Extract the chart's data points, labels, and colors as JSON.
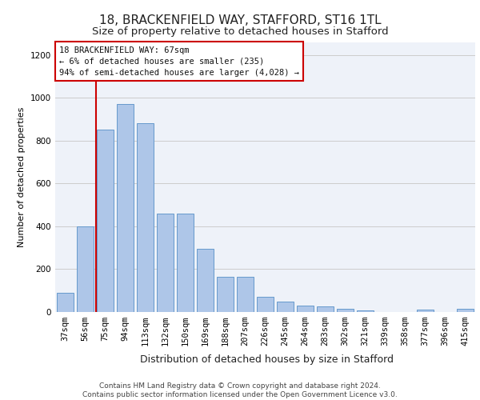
{
  "title1": "18, BRACKENFIELD WAY, STAFFORD, ST16 1TL",
  "title2": "Size of property relative to detached houses in Stafford",
  "xlabel": "Distribution of detached houses by size in Stafford",
  "ylabel": "Number of detached properties",
  "categories": [
    "37sqm",
    "56sqm",
    "75sqm",
    "94sqm",
    "113sqm",
    "132sqm",
    "150sqm",
    "169sqm",
    "188sqm",
    "207sqm",
    "226sqm",
    "245sqm",
    "264sqm",
    "283sqm",
    "302sqm",
    "321sqm",
    "339sqm",
    "358sqm",
    "377sqm",
    "396sqm",
    "415sqm"
  ],
  "values": [
    90,
    400,
    850,
    970,
    880,
    460,
    460,
    295,
    165,
    165,
    70,
    50,
    30,
    25,
    15,
    8,
    0,
    0,
    10,
    0,
    15
  ],
  "bar_color": "#aec6e8",
  "bar_edge_color": "#6699cc",
  "vline_color": "#cc0000",
  "annotation_text": "18 BRACKENFIELD WAY: 67sqm\n← 6% of detached houses are smaller (235)\n94% of semi-detached houses are larger (4,028) →",
  "annotation_box_color": "#ffffff",
  "annotation_box_edge": "#cc0000",
  "ylim": [
    0,
    1260
  ],
  "yticks": [
    0,
    200,
    400,
    600,
    800,
    1000,
    1200
  ],
  "grid_color": "#cccccc",
  "bg_color": "#eef2f9",
  "footer": "Contains HM Land Registry data © Crown copyright and database right 2024.\nContains public sector information licensed under the Open Government Licence v3.0.",
  "title1_fontsize": 11,
  "title2_fontsize": 9.5,
  "xlabel_fontsize": 9,
  "ylabel_fontsize": 8,
  "tick_fontsize": 7.5,
  "annotation_fontsize": 7.5,
  "footer_fontsize": 6.5
}
